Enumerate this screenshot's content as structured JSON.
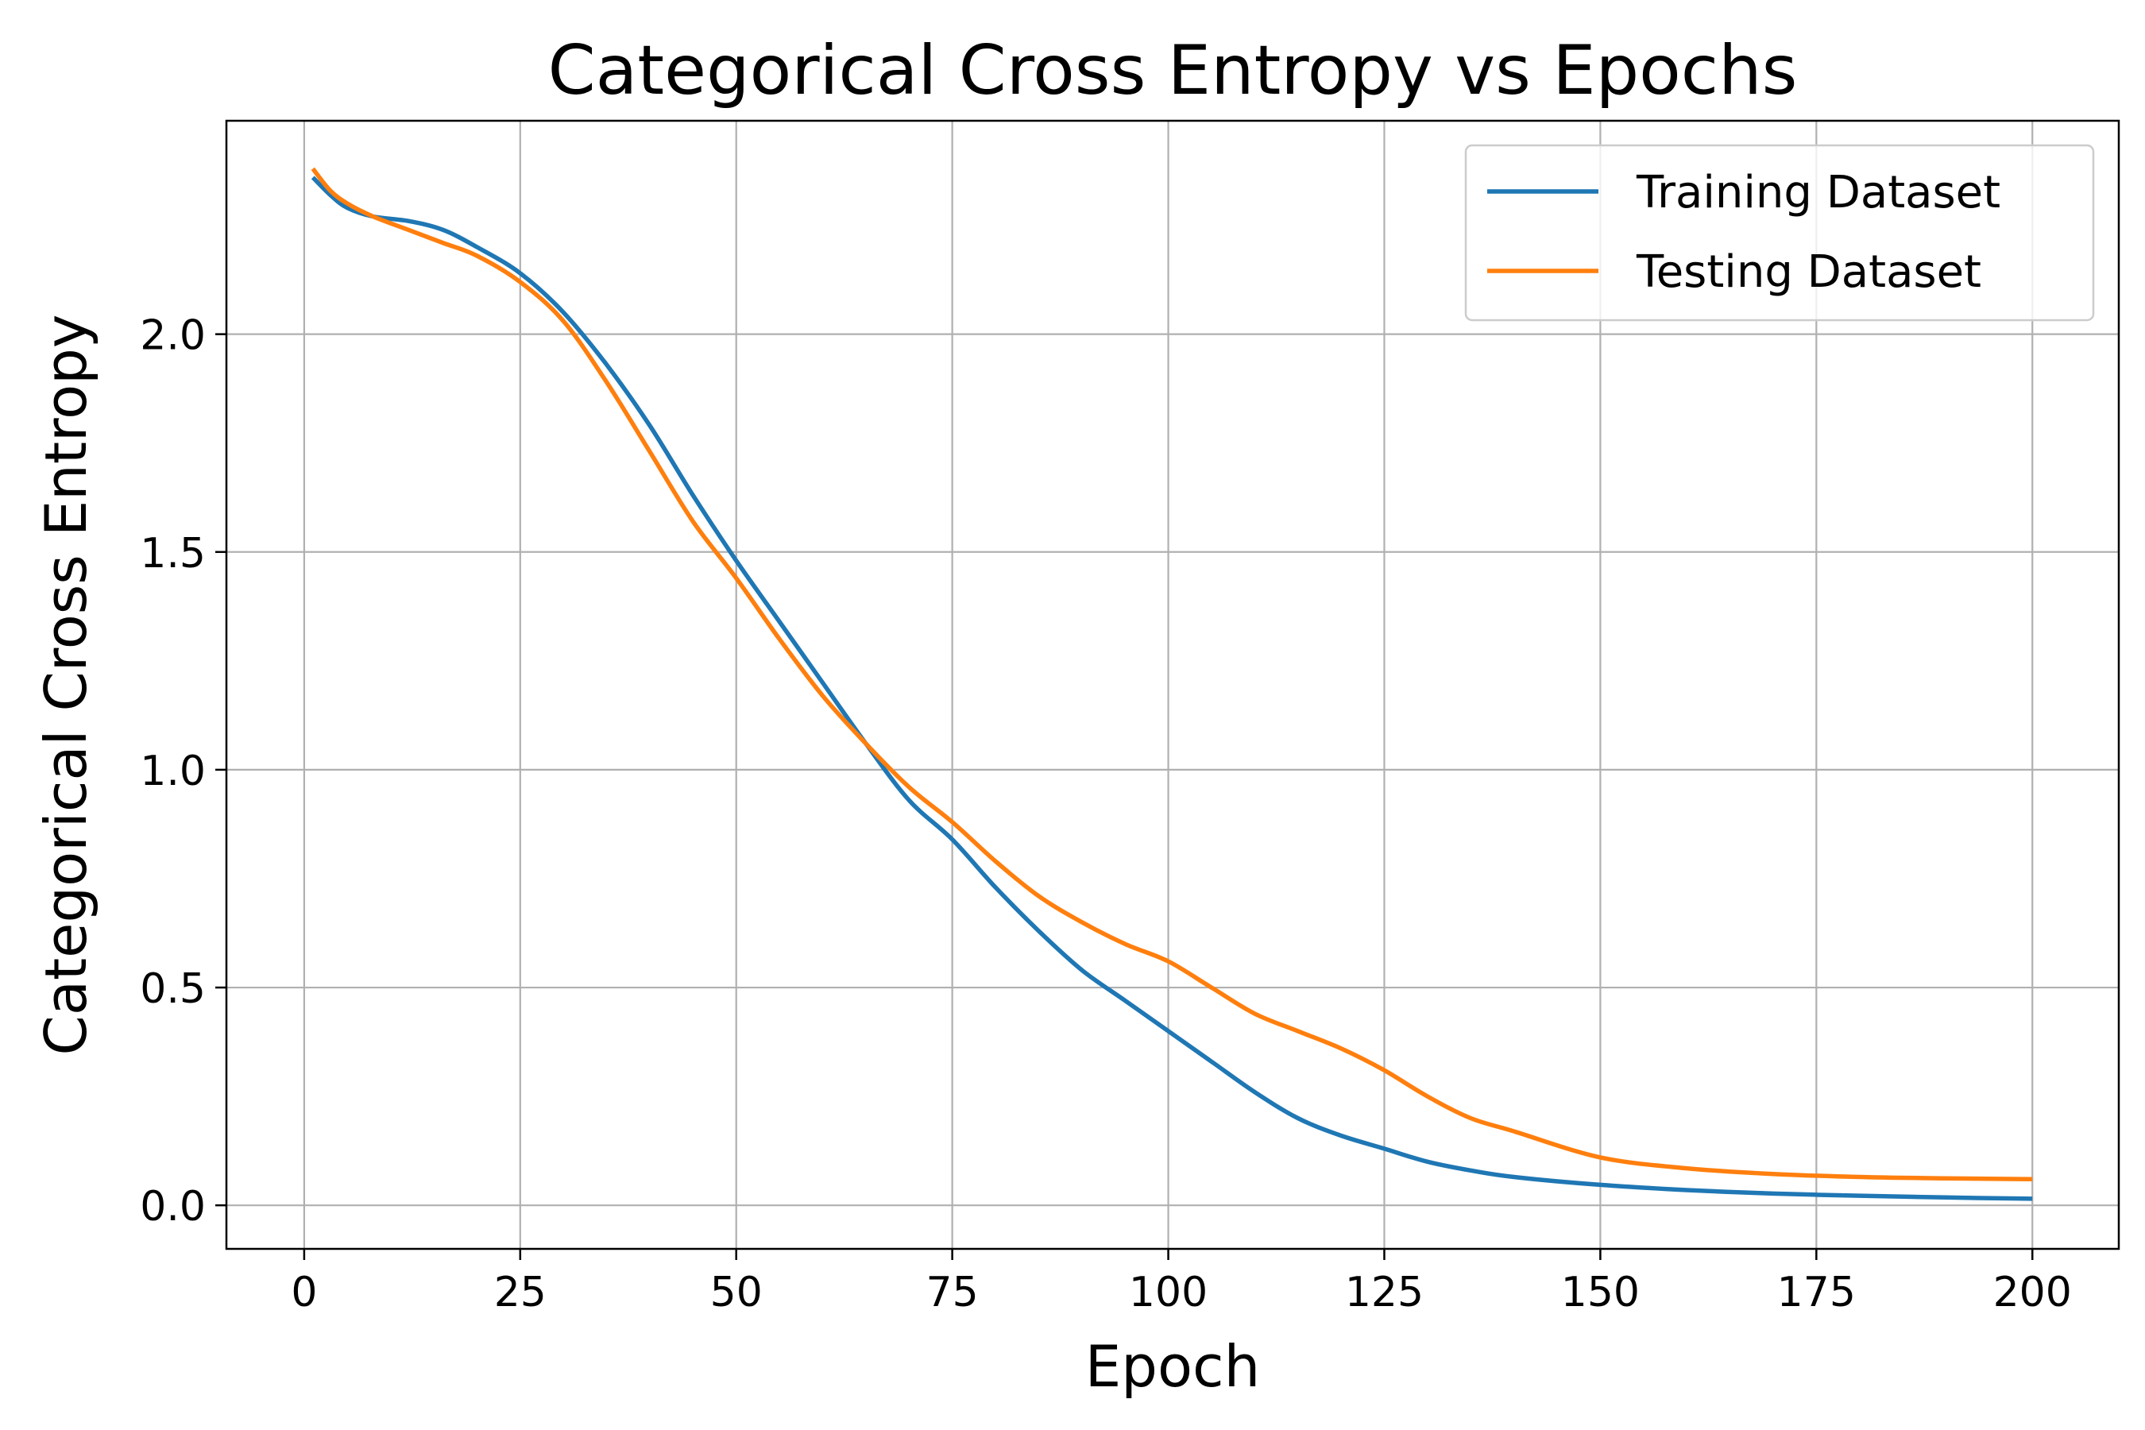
{
  "chart_data": {
    "type": "line",
    "title": "Categorical Cross Entropy vs Epochs",
    "xlabel": "Epoch",
    "ylabel": "Categorical Cross Entropy",
    "xlim": [
      -9,
      210
    ],
    "ylim": [
      -0.1,
      2.49
    ],
    "xticks": [
      0,
      25,
      50,
      75,
      100,
      125,
      150,
      175,
      200
    ],
    "yticks": [
      0.0,
      0.5,
      1.0,
      1.5,
      2.0
    ],
    "ytick_labels": [
      "0.0",
      "0.5",
      "1.0",
      "1.5",
      "2.0"
    ],
    "grid": true,
    "legend_position": "top-right",
    "series": [
      {
        "name": "Training Dataset",
        "color": "#1f77b4",
        "x": [
          1,
          3,
          5,
          8,
          12,
          16,
          20,
          25,
          30,
          35,
          40,
          45,
          50,
          55,
          60,
          65,
          70,
          75,
          80,
          85,
          90,
          95,
          100,
          105,
          110,
          115,
          120,
          125,
          130,
          135,
          140,
          150,
          160,
          170,
          180,
          190,
          200
        ],
        "y": [
          2.36,
          2.32,
          2.29,
          2.27,
          2.26,
          2.24,
          2.2,
          2.14,
          2.05,
          1.93,
          1.79,
          1.63,
          1.48,
          1.34,
          1.2,
          1.06,
          0.93,
          0.84,
          0.73,
          0.63,
          0.54,
          0.47,
          0.4,
          0.33,
          0.26,
          0.2,
          0.16,
          0.13,
          0.1,
          0.08,
          0.065,
          0.047,
          0.035,
          0.027,
          0.022,
          0.018,
          0.015
        ]
      },
      {
        "name": "Testing Dataset",
        "color": "#ff7f0e",
        "x": [
          1,
          3,
          5,
          8,
          12,
          16,
          20,
          25,
          30,
          35,
          40,
          45,
          50,
          55,
          60,
          65,
          70,
          75,
          80,
          85,
          90,
          95,
          100,
          105,
          110,
          115,
          120,
          125,
          130,
          135,
          140,
          150,
          160,
          170,
          180,
          190,
          200
        ],
        "y": [
          2.38,
          2.33,
          2.3,
          2.27,
          2.24,
          2.21,
          2.18,
          2.12,
          2.03,
          1.89,
          1.73,
          1.57,
          1.44,
          1.3,
          1.17,
          1.06,
          0.96,
          0.88,
          0.79,
          0.71,
          0.65,
          0.6,
          0.56,
          0.5,
          0.44,
          0.4,
          0.36,
          0.31,
          0.25,
          0.2,
          0.17,
          0.11,
          0.085,
          0.072,
          0.065,
          0.062,
          0.06
        ]
      }
    ]
  }
}
